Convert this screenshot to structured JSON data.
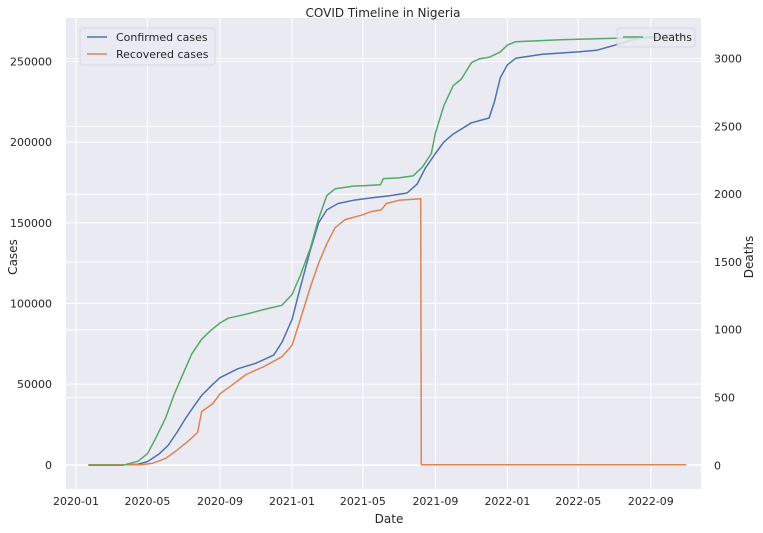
{
  "colors": {
    "background": "#eaeaf2",
    "grid": "#ffffff",
    "confirmed": "#4c72b0",
    "recovered": "#dd8452",
    "deaths": "#55a868"
  },
  "chart_data": {
    "type": "line",
    "title": "COVID Timeline in Nigeria",
    "xlabel": "Date",
    "ylabel": "Cases",
    "y2label": "Deaths",
    "grid": true,
    "xlim": [
      "2019-12-15",
      "2022-11-25"
    ],
    "ylim": [
      -15000,
      277000
    ],
    "y2lim": [
      -175,
      3300
    ],
    "x_ticks": [
      "2020-01",
      "2020-05",
      "2020-09",
      "2021-01",
      "2021-05",
      "2021-09",
      "2022-01",
      "2022-05",
      "2022-09"
    ],
    "y_ticks": [
      0,
      50000,
      100000,
      150000,
      200000,
      250000
    ],
    "y2_ticks": [
      0,
      500,
      1000,
      1500,
      2000,
      2500,
      3000
    ],
    "legend_left": [
      "Confirmed cases",
      "Recovered cases"
    ],
    "legend_right": [
      "Deaths"
    ],
    "series": [
      {
        "name": "Confirmed cases",
        "axis": "left",
        "color_key": "confirmed",
        "points": [
          [
            "2020-01-22",
            0
          ],
          [
            "2020-02-28",
            1
          ],
          [
            "2020-03-25",
            50
          ],
          [
            "2020-04-15",
            400
          ],
          [
            "2020-05-01",
            2000
          ],
          [
            "2020-05-20",
            6500
          ],
          [
            "2020-06-05",
            12000
          ],
          [
            "2020-06-20",
            20000
          ],
          [
            "2020-07-05",
            29000
          ],
          [
            "2020-07-20",
            37000
          ],
          [
            "2020-08-01",
            43000
          ],
          [
            "2020-08-20",
            50000
          ],
          [
            "2020-09-01",
            54000
          ],
          [
            "2020-10-01",
            59500
          ],
          [
            "2020-11-01",
            63000
          ],
          [
            "2020-12-01",
            68000
          ],
          [
            "2020-12-15",
            76000
          ],
          [
            "2021-01-01",
            90000
          ],
          [
            "2021-01-15",
            110000
          ],
          [
            "2021-02-01",
            133000
          ],
          [
            "2021-02-15",
            150000
          ],
          [
            "2021-03-01",
            158000
          ],
          [
            "2021-03-20",
            162000
          ],
          [
            "2021-04-15",
            164000
          ],
          [
            "2021-05-15",
            165500
          ],
          [
            "2021-06-15",
            166800
          ],
          [
            "2021-07-15",
            168500
          ],
          [
            "2021-08-01",
            174000
          ],
          [
            "2021-08-15",
            184000
          ],
          [
            "2021-09-01",
            193000
          ],
          [
            "2021-09-15",
            200000
          ],
          [
            "2021-10-01",
            205000
          ],
          [
            "2021-11-01",
            212000
          ],
          [
            "2021-12-01",
            215000
          ],
          [
            "2021-12-10",
            225000
          ],
          [
            "2021-12-20",
            240000
          ],
          [
            "2022-01-01",
            248000
          ],
          [
            "2022-01-15",
            252000
          ],
          [
            "2022-03-01",
            254500
          ],
          [
            "2022-05-01",
            256000
          ],
          [
            "2022-06-01",
            257000
          ],
          [
            "2022-07-01",
            260000
          ],
          [
            "2022-08-01",
            263500
          ],
          [
            "2022-09-01",
            265500
          ],
          [
            "2022-10-01",
            266500
          ],
          [
            "2022-10-31",
            266600
          ]
        ]
      },
      {
        "name": "Recovered cases",
        "axis": "left",
        "color_key": "recovered",
        "points": [
          [
            "2020-01-22",
            0
          ],
          [
            "2020-04-20",
            0
          ],
          [
            "2020-05-10",
            1000
          ],
          [
            "2020-06-01",
            4000
          ],
          [
            "2020-06-20",
            9000
          ],
          [
            "2020-07-10",
            15000
          ],
          [
            "2020-07-25",
            20000
          ],
          [
            "2020-08-01",
            33000
          ],
          [
            "2020-08-20",
            38000
          ],
          [
            "2020-09-01",
            44000
          ],
          [
            "2020-10-01",
            52000
          ],
          [
            "2020-10-15",
            56000
          ],
          [
            "2020-11-15",
            61000
          ],
          [
            "2020-12-15",
            67000
          ],
          [
            "2021-01-01",
            74000
          ],
          [
            "2021-01-15",
            90000
          ],
          [
            "2021-02-01",
            110000
          ],
          [
            "2021-02-15",
            125000
          ],
          [
            "2021-03-01",
            137000
          ],
          [
            "2021-03-15",
            147000
          ],
          [
            "2021-04-01",
            152000
          ],
          [
            "2021-05-01",
            155000
          ],
          [
            "2021-05-15",
            157000
          ],
          [
            "2021-06-01",
            158000
          ],
          [
            "2021-06-10",
            162000
          ],
          [
            "2021-07-01",
            164000
          ],
          [
            "2021-08-07",
            165000
          ],
          [
            "2021-08-08",
            0
          ],
          [
            "2022-10-31",
            0
          ]
        ]
      },
      {
        "name": "Deaths",
        "axis": "right",
        "color_key": "deaths",
        "points": [
          [
            "2020-01-22",
            0
          ],
          [
            "2020-03-20",
            0
          ],
          [
            "2020-04-15",
            30
          ],
          [
            "2020-05-01",
            85
          ],
          [
            "2020-05-15",
            200
          ],
          [
            "2020-06-01",
            350
          ],
          [
            "2020-06-15",
            520
          ],
          [
            "2020-07-01",
            680
          ],
          [
            "2020-07-15",
            820
          ],
          [
            "2020-08-01",
            930
          ],
          [
            "2020-08-15",
            990
          ],
          [
            "2020-09-01",
            1050
          ],
          [
            "2020-09-15",
            1085
          ],
          [
            "2020-10-15",
            1115
          ],
          [
            "2020-11-15",
            1150
          ],
          [
            "2020-12-15",
            1180
          ],
          [
            "2021-01-01",
            1260
          ],
          [
            "2021-01-15",
            1400
          ],
          [
            "2021-02-01",
            1600
          ],
          [
            "2021-02-15",
            1820
          ],
          [
            "2021-03-01",
            1990
          ],
          [
            "2021-03-15",
            2040
          ],
          [
            "2021-04-15",
            2060
          ],
          [
            "2021-05-01",
            2063
          ],
          [
            "2021-05-31",
            2070
          ],
          [
            "2021-06-05",
            2115
          ],
          [
            "2021-07-01",
            2120
          ],
          [
            "2021-07-25",
            2135
          ],
          [
            "2021-08-10",
            2200
          ],
          [
            "2021-08-25",
            2300
          ],
          [
            "2021-09-01",
            2450
          ],
          [
            "2021-09-15",
            2650
          ],
          [
            "2021-10-01",
            2800
          ],
          [
            "2021-10-15",
            2850
          ],
          [
            "2021-11-01",
            2970
          ],
          [
            "2021-11-15",
            3000
          ],
          [
            "2021-12-01",
            3010
          ],
          [
            "2021-12-20",
            3050
          ],
          [
            "2022-01-01",
            3100
          ],
          [
            "2022-01-15",
            3125
          ],
          [
            "2022-04-01",
            3140
          ],
          [
            "2022-07-01",
            3150
          ],
          [
            "2022-10-31",
            3155
          ]
        ]
      }
    ]
  }
}
